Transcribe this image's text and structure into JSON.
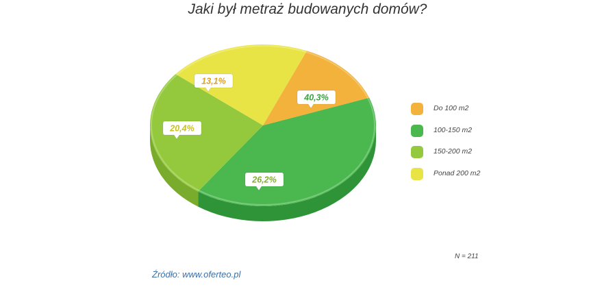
{
  "title": "Jaki był metraż budowanych domów?",
  "source": "Źródło: www.oferteo.pl",
  "n_label": "N = 211",
  "colors": {
    "source_text": "#3a6fa8",
    "callout_bg": "#ffffff"
  },
  "chart_data": {
    "type": "pie",
    "title": "Jaki był metraż budowanych domów?",
    "unit": "%",
    "legend_position": "right",
    "slices": [
      {
        "name": "Do 100 m2",
        "value": 13.1,
        "label": "13,1%",
        "color": "#f2b23c",
        "side_color": "#d69421",
        "label_color": "#e0a020"
      },
      {
        "name": "100-150 m2",
        "value": 40.3,
        "label": "40,3%",
        "color": "#4bb84f",
        "side_color": "#2f9437",
        "label_color": "#3aa43f"
      },
      {
        "name": "150-200 m2",
        "value": 26.2,
        "label": "26,2%",
        "color": "#95c93d",
        "side_color": "#79ab2c",
        "label_color": "#7fb02e"
      },
      {
        "name": "Ponad 200 m2",
        "value": 20.4,
        "label": "20,4%",
        "color": "#e9e446",
        "side_color": "#cfc92e",
        "label_color": "#c8c21e"
      }
    ]
  }
}
